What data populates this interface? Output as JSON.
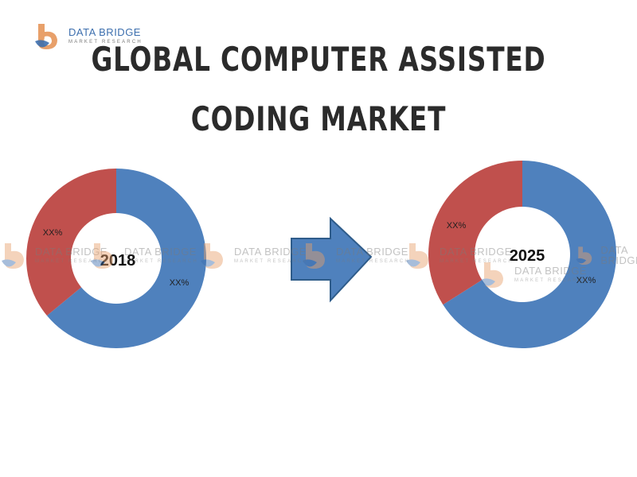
{
  "logo": {
    "brand": "DATA BRIDGE",
    "sub": "MARKET RESEARCH"
  },
  "title": {
    "line1": "GLOBAL COMPUTER ASSISTED",
    "line2": "CODING MARKET"
  },
  "colors": {
    "blue": "#4f81bd",
    "red": "#c0504d",
    "arrow": "#4f81bd",
    "arrow_stroke": "#2f5c8a"
  },
  "chart_data": [
    {
      "type": "pie",
      "center_label": "2018",
      "slices": [
        {
          "label": "XX%",
          "value": 64,
          "color": "#4f81bd"
        },
        {
          "label": "XX%",
          "value": 36,
          "color": "#c0504d"
        }
      ]
    },
    {
      "type": "pie",
      "center_label": "2025",
      "slices": [
        {
          "label": "XX%",
          "value": 66,
          "color": "#4f81bd"
        },
        {
          "label": "XX%",
          "value": 34,
          "color": "#c0504d"
        }
      ]
    }
  ]
}
